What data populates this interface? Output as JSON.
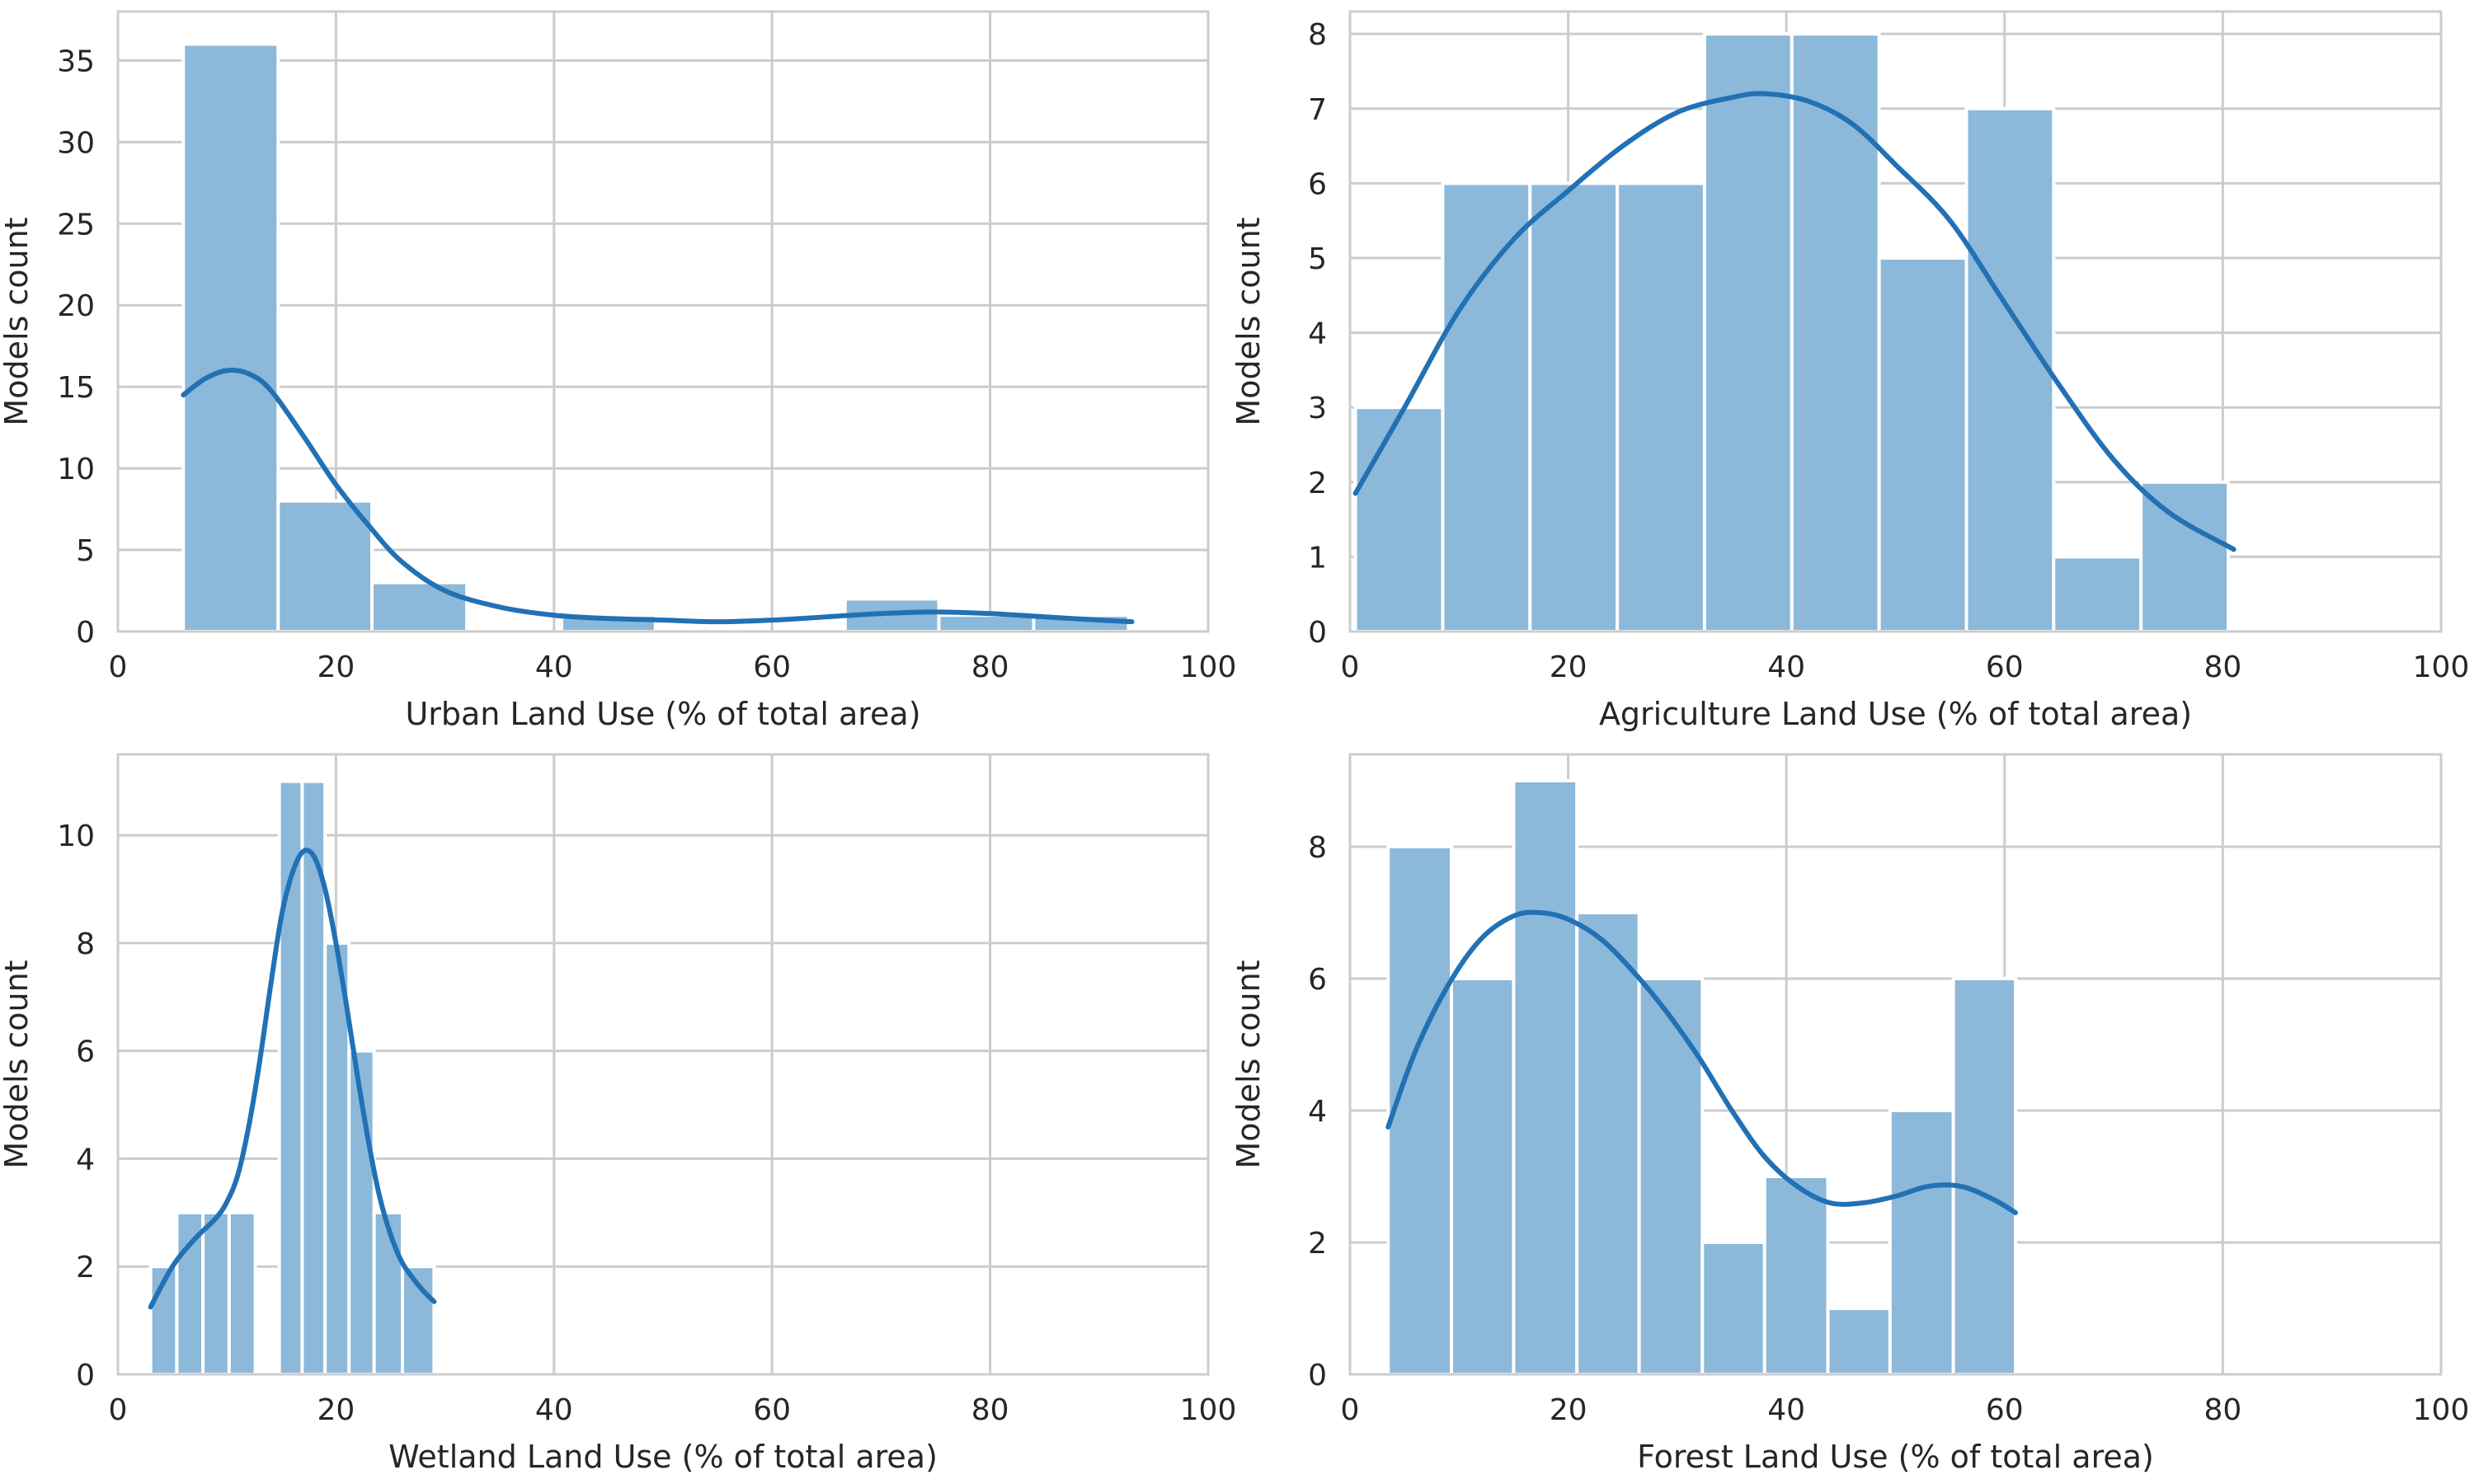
{
  "chart_data": [
    {
      "type": "histogram",
      "xlabel": "Urban Land Use (% of total area)",
      "ylabel": "Models count",
      "xlim": [
        0,
        100
      ],
      "ylim": [
        0,
        38
      ],
      "xticks": [
        "0",
        "20",
        "40",
        "60",
        "80",
        "100"
      ],
      "yticks": [
        "0",
        "5",
        "10",
        "15",
        "20",
        "25",
        "30",
        "35"
      ],
      "grid": true,
      "bins": [
        {
          "x0": 6.0,
          "x1": 14.7,
          "count": 36
        },
        {
          "x0": 14.7,
          "x1": 23.3,
          "count": 8
        },
        {
          "x0": 23.3,
          "x1": 32.0,
          "count": 3
        },
        {
          "x0": 32.0,
          "x1": 40.7,
          "count": 0
        },
        {
          "x0": 40.7,
          "x1": 49.3,
          "count": 1
        },
        {
          "x0": 49.3,
          "x1": 58.0,
          "count": 0
        },
        {
          "x0": 58.0,
          "x1": 66.7,
          "count": 0
        },
        {
          "x0": 66.7,
          "x1": 75.3,
          "count": 2
        },
        {
          "x0": 75.3,
          "x1": 84.0,
          "count": 1
        },
        {
          "x0": 84.0,
          "x1": 92.7,
          "count": 1
        }
      ],
      "kde": {
        "x": [
          6,
          8,
          10,
          12,
          14,
          17,
          20,
          23,
          26,
          30,
          35,
          40,
          45,
          50,
          55,
          60,
          65,
          70,
          75,
          80,
          85,
          90,
          93
        ],
        "y": [
          14.5,
          15.5,
          16.0,
          15.8,
          14.8,
          12.0,
          9.0,
          6.5,
          4.3,
          2.5,
          1.5,
          1.0,
          0.8,
          0.7,
          0.6,
          0.7,
          0.9,
          1.1,
          1.2,
          1.1,
          0.9,
          0.7,
          0.6
        ]
      }
    },
    {
      "type": "histogram",
      "xlabel": "Agriculture Land Use (% of total area)",
      "ylabel": "Models count",
      "xlim": [
        0,
        100
      ],
      "ylim": [
        0,
        8.3
      ],
      "xticks": [
        "0",
        "20",
        "40",
        "60",
        "80",
        "100"
      ],
      "yticks": [
        "0",
        "1",
        "2",
        "3",
        "4",
        "5",
        "6",
        "7",
        "8"
      ],
      "grid": true,
      "bins": [
        {
          "x0": 0.5,
          "x1": 8.5,
          "count": 3
        },
        {
          "x0": 8.5,
          "x1": 16.5,
          "count": 6
        },
        {
          "x0": 16.5,
          "x1": 24.5,
          "count": 6
        },
        {
          "x0": 24.5,
          "x1": 32.5,
          "count": 6
        },
        {
          "x0": 32.5,
          "x1": 40.5,
          "count": 8
        },
        {
          "x0": 40.5,
          "x1": 48.5,
          "count": 8
        },
        {
          "x0": 48.5,
          "x1": 56.5,
          "count": 5
        },
        {
          "x0": 56.5,
          "x1": 64.5,
          "count": 7
        },
        {
          "x0": 64.5,
          "x1": 72.5,
          "count": 1
        },
        {
          "x0": 72.5,
          "x1": 80.5,
          "count": 2
        }
      ],
      "kde": {
        "x": [
          0.5,
          5,
          10,
          15,
          20,
          25,
          30,
          35,
          38,
          42,
          46,
          50,
          55,
          60,
          65,
          70,
          75,
          81
        ],
        "y": [
          1.85,
          3.0,
          4.3,
          5.25,
          5.9,
          6.5,
          6.95,
          7.15,
          7.2,
          7.1,
          6.8,
          6.25,
          5.5,
          4.4,
          3.3,
          2.3,
          1.6,
          1.1
        ]
      }
    },
    {
      "type": "histogram",
      "xlabel": "Wetland Land Use (% of total area)",
      "ylabel": "Models count",
      "xlim": [
        0,
        100
      ],
      "ylim": [
        0,
        11.5
      ],
      "xticks": [
        "0",
        "20",
        "40",
        "60",
        "80",
        "100"
      ],
      "yticks": [
        "0",
        "2",
        "4",
        "6",
        "8",
        "10"
      ],
      "grid": true,
      "bins": [
        {
          "x0": 3.0,
          "x1": 5.4,
          "count": 2
        },
        {
          "x0": 5.4,
          "x1": 7.8,
          "count": 3
        },
        {
          "x0": 7.8,
          "x1": 10.2,
          "count": 3
        },
        {
          "x0": 10.2,
          "x1": 12.6,
          "count": 3
        },
        {
          "x0": 12.6,
          "x1": 14.8,
          "count": 0
        },
        {
          "x0": 14.8,
          "x1": 16.9,
          "count": 11
        },
        {
          "x0": 16.9,
          "x1": 19.0,
          "count": 11
        },
        {
          "x0": 19.0,
          "x1": 21.2,
          "count": 8
        },
        {
          "x0": 21.2,
          "x1": 23.5,
          "count": 6
        },
        {
          "x0": 23.5,
          "x1": 26.1,
          "count": 3
        },
        {
          "x0": 26.1,
          "x1": 29.0,
          "count": 2
        }
      ],
      "kde": {
        "x": [
          3,
          5,
          7,
          9,
          10,
          11,
          12,
          13,
          14,
          15,
          16,
          17,
          18,
          19,
          20,
          21,
          22,
          23,
          24,
          25,
          26,
          27,
          28,
          29
        ],
        "y": [
          1.25,
          2.0,
          2.5,
          2.9,
          3.2,
          3.7,
          4.6,
          5.8,
          7.2,
          8.5,
          9.3,
          9.7,
          9.6,
          9.0,
          8.0,
          6.8,
          5.5,
          4.3,
          3.3,
          2.6,
          2.1,
          1.8,
          1.55,
          1.35
        ]
      }
    },
    {
      "type": "histogram",
      "xlabel": "Forest Land Use (% of total area)",
      "ylabel": "Models count",
      "xlim": [
        0,
        100
      ],
      "ylim": [
        0,
        9.4
      ],
      "xticks": [
        "0",
        "20",
        "40",
        "60",
        "80",
        "100"
      ],
      "yticks": [
        "0",
        "2",
        "4",
        "6",
        "8"
      ],
      "grid": true,
      "bins": [
        {
          "x0": 3.5,
          "x1": 9.3,
          "count": 8
        },
        {
          "x0": 9.3,
          "x1": 15.0,
          "count": 6
        },
        {
          "x0": 15.0,
          "x1": 20.8,
          "count": 9
        },
        {
          "x0": 20.8,
          "x1": 26.5,
          "count": 7
        },
        {
          "x0": 26.5,
          "x1": 32.3,
          "count": 6
        },
        {
          "x0": 32.3,
          "x1": 38.0,
          "count": 2
        },
        {
          "x0": 38.0,
          "x1": 43.8,
          "count": 3
        },
        {
          "x0": 43.8,
          "x1": 49.5,
          "count": 1
        },
        {
          "x0": 49.5,
          "x1": 55.3,
          "count": 4
        },
        {
          "x0": 55.3,
          "x1": 61.0,
          "count": 6
        }
      ],
      "kde": {
        "x": [
          3.5,
          6,
          9,
          12,
          15,
          17.5,
          20,
          23,
          26,
          29,
          32,
          35,
          38,
          41,
          44,
          47,
          50,
          53,
          56,
          59,
          61
        ],
        "y": [
          3.75,
          4.9,
          5.9,
          6.6,
          6.95,
          7.0,
          6.9,
          6.6,
          6.1,
          5.5,
          4.8,
          4.0,
          3.3,
          2.85,
          2.6,
          2.6,
          2.7,
          2.85,
          2.85,
          2.65,
          2.45
        ]
      }
    }
  ],
  "colors": {
    "bar_fill": "#8cb8da",
    "bar_edge": "#ffffff",
    "kde_line": "#2171b5",
    "grid": "#cccccc",
    "axis_text": "#262626"
  }
}
